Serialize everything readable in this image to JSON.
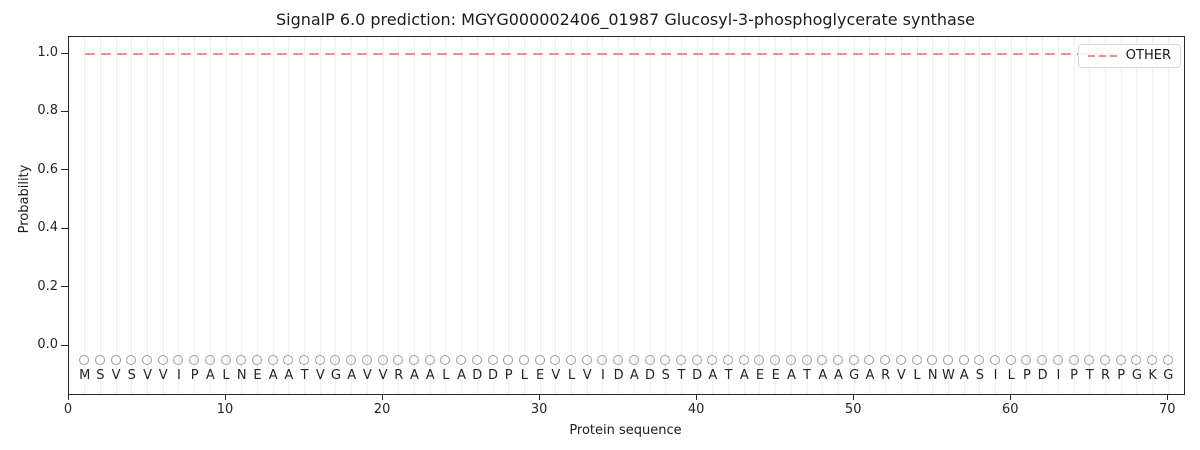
{
  "figure": {
    "title": "SignalP 6.0 prediction: MGYG000002406_01987 Glucosyl-3-phosphoglycerate synthase",
    "xlabel": "Protein sequence",
    "ylabel": "Probability"
  },
  "legend": {
    "entries": [
      {
        "label": "OTHER",
        "line_style": "dashed",
        "color": "#f48c8c"
      }
    ],
    "position": "upper right"
  },
  "sequence": "MSVSVVIPALNEAATVGAVVRAALADDPLEVLVIDADSTDATAEEATAAGARVLNWASILPDIPTRPGKG",
  "colors": {
    "other_line": "#f48c8c",
    "gridline": "#efefef",
    "residue_marker": "#9c9c9c",
    "spine": "#262626",
    "text": "#1a1a1a"
  },
  "chart_data": {
    "type": "line",
    "title": "SignalP 6.0 prediction: MGYG000002406_01987 Glucosyl-3-phosphoglycerate synthase",
    "xlabel": "Protein sequence",
    "ylabel": "Probability",
    "xticks": [
      0,
      10,
      20,
      30,
      40,
      50,
      60,
      70
    ],
    "yticks": [
      0.0,
      0.2,
      0.4,
      0.6,
      0.8,
      1.0
    ],
    "ytick_labels": [
      "0.0",
      "0.2",
      "0.4",
      "0.6",
      "0.8",
      "1.0"
    ],
    "xlim": [
      0,
      71
    ],
    "ylim": [
      -0.16,
      1.06
    ],
    "grid": "vertical gridline at every residue position, no horizontal grid",
    "legend_position": "upper right",
    "series": [
      {
        "name": "OTHER",
        "style": "dashed",
        "color": "#f48c8c",
        "x_start": 1,
        "x_end": 70,
        "constant_y": 1.0,
        "note": "constant probability 1.0 for all 70 residues"
      }
    ],
    "residue_markers": {
      "marker": "open-circle",
      "color": "#9c9c9c",
      "y": -0.05,
      "x_positions": "1 through 70"
    },
    "sequence": "MSVSVVIPALNEAATVGAVVRAALADDPLEVLVIDADSTDATAEEATAAGARVLNWASILPDIPTRPGKG"
  }
}
